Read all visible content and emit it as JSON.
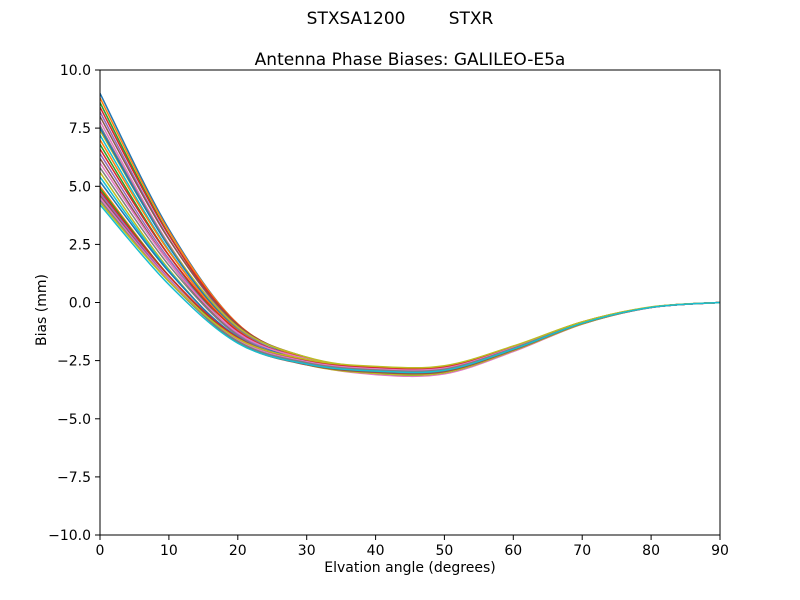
{
  "figure": {
    "suptitle": "STXSA1200        STXR",
    "title": "Antenna Phase Biases: GALILEO-E5a",
    "xlabel": "Elvation angle (degrees)",
    "ylabel": "Bias (mm)"
  },
  "chart_data": {
    "type": "line",
    "suptitle": "STXSA1200        STXR",
    "title": "Antenna Phase Biases: GALILEO-E5a",
    "xlabel": "Elvation angle (degrees)",
    "ylabel": "Bias (mm)",
    "xlim": [
      0,
      90
    ],
    "ylim": [
      -10,
      10
    ],
    "x_ticks": [
      0,
      10,
      20,
      30,
      40,
      50,
      60,
      70,
      80,
      90
    ],
    "x_tick_labels": [
      "0",
      "10",
      "20",
      "30",
      "40",
      "50",
      "60",
      "70",
      "80",
      "90"
    ],
    "y_ticks": [
      10.0,
      7.5,
      5.0,
      2.5,
      0.0,
      -2.5,
      -5.0,
      -7.5,
      -10.0
    ],
    "y_tick_labels": [
      "10.0",
      "7.5",
      "5.0",
      "2.5",
      "0.0",
      "−2.5",
      "−5.0",
      "−7.5",
      "−10.0"
    ],
    "grid": false,
    "legend": "none",
    "palette": [
      "#1f77b4",
      "#ff7f0e",
      "#2ca02c",
      "#d62728",
      "#9467bd",
      "#8c564b",
      "#e377c2",
      "#7f7f7f",
      "#bcbd22",
      "#17becf"
    ],
    "x": [
      0,
      10,
      20,
      30,
      40,
      50,
      60,
      70,
      80,
      90
    ],
    "series": [
      {
        "color_index": 0,
        "values": [
          9.0,
          3.15,
          -0.93,
          -2.46,
          -3.0,
          -2.97,
          -2.04,
          -0.9,
          -0.21,
          0.0
        ]
      },
      {
        "color_index": 1,
        "values": [
          8.8,
          3.07,
          -0.92,
          -2.42,
          -2.95,
          -2.92,
          -2.01,
          -0.89,
          -0.21,
          0.0
        ]
      },
      {
        "color_index": 2,
        "values": [
          8.6,
          2.93,
          -1.04,
          -2.53,
          -3.05,
          -3.02,
          -2.07,
          -0.92,
          -0.21,
          0.0
        ]
      },
      {
        "color_index": 3,
        "values": [
          8.4,
          2.9,
          -0.95,
          -2.39,
          -2.9,
          -2.87,
          -1.97,
          -0.87,
          -0.2,
          0.0
        ]
      },
      {
        "color_index": 4,
        "values": [
          8.2,
          2.75,
          -1.07,
          -2.5,
          -3.0,
          -2.97,
          -2.04,
          -0.9,
          -0.21,
          0.0
        ]
      },
      {
        "color_index": 5,
        "values": [
          8.0,
          2.72,
          -0.98,
          -2.36,
          -2.85,
          -2.82,
          -1.94,
          -0.86,
          -0.2,
          0.0
        ]
      },
      {
        "color_index": 6,
        "values": [
          7.8,
          2.51,
          -1.23,
          -2.62,
          -3.1,
          -3.07,
          -2.11,
          -0.93,
          -0.22,
          0.0
        ]
      },
      {
        "color_index": 7,
        "values": [
          7.6,
          2.47,
          -1.14,
          -2.48,
          -2.95,
          -2.92,
          -2.01,
          -0.89,
          -0.21,
          0.0
        ]
      },
      {
        "color_index": 8,
        "values": [
          7.4,
          2.44,
          -1.05,
          -2.35,
          -2.8,
          -2.77,
          -1.9,
          -0.84,
          -0.2,
          0.0
        ]
      },
      {
        "color_index": 9,
        "values": [
          7.2,
          2.25,
          -1.25,
          -2.55,
          -3.0,
          -2.97,
          -2.04,
          -0.9,
          -0.21,
          0.0
        ]
      },
      {
        "color_index": 0,
        "values": [
          7.5,
          2.4,
          -1.2,
          -2.54,
          -3.0,
          -2.97,
          -2.04,
          -0.9,
          -0.21,
          0.0
        ]
      },
      {
        "color_index": 1,
        "values": [
          7.0,
          2.2,
          -1.21,
          -2.46,
          -2.9,
          -2.87,
          -1.97,
          -0.87,
          -0.2,
          0.0
        ]
      },
      {
        "color_index": 2,
        "values": [
          6.8,
          2.03,
          -1.37,
          -2.62,
          -3.05,
          -3.02,
          -2.07,
          -0.92,
          -0.21,
          0.0
        ]
      },
      {
        "color_index": 3,
        "values": [
          6.6,
          2.02,
          -1.23,
          -2.43,
          -2.85,
          -2.82,
          -1.94,
          -0.86,
          -0.2,
          0.0
        ]
      },
      {
        "color_index": 4,
        "values": [
          6.4,
          1.87,
          -1.36,
          -2.54,
          -2.95,
          -2.92,
          -2.01,
          -0.89,
          -0.21,
          0.0
        ]
      },
      {
        "color_index": 5,
        "values": [
          6.2,
          1.75,
          -1.43,
          -2.6,
          -3.0,
          -2.97,
          -2.04,
          -0.9,
          -0.21,
          0.0
        ]
      },
      {
        "color_index": 6,
        "values": [
          6.0,
          1.74,
          -1.3,
          -2.42,
          -2.8,
          -2.77,
          -1.9,
          -0.84,
          -0.2,
          0.0
        ]
      },
      {
        "color_index": 7,
        "values": [
          5.8,
          1.6,
          -1.42,
          -2.52,
          -2.9,
          -2.87,
          -1.97,
          -0.87,
          -0.2,
          0.0
        ]
      },
      {
        "color_index": 8,
        "values": [
          5.6,
          1.43,
          -1.58,
          -2.68,
          -3.05,
          -3.02,
          -2.07,
          -0.92,
          -0.21,
          0.0
        ]
      },
      {
        "color_index": 9,
        "values": [
          5.4,
          1.37,
          -1.54,
          -2.59,
          -2.95,
          -2.92,
          -2.01,
          -0.89,
          -0.21,
          0.0
        ]
      },
      {
        "color_index": 0,
        "values": [
          5.2,
          1.32,
          -1.49,
          -2.5,
          -2.85,
          -2.82,
          -1.94,
          -0.86,
          -0.2,
          0.0
        ]
      },
      {
        "color_index": 1,
        "values": [
          5.0,
          1.15,
          -1.65,
          -2.66,
          -3.0,
          -2.97,
          -2.04,
          -0.9,
          -0.21,
          0.0
        ]
      },
      {
        "color_index": 2,
        "values": [
          4.9,
          1.15,
          -1.58,
          -2.57,
          -2.9,
          -2.87,
          -1.97,
          -0.87,
          -0.2,
          0.0
        ]
      },
      {
        "color_index": 3,
        "values": [
          4.8,
          1.14,
          -1.52,
          -2.48,
          -2.8,
          -2.77,
          -1.9,
          -0.84,
          -0.2,
          0.0
        ]
      },
      {
        "color_index": 4,
        "values": [
          4.7,
          1.02,
          -1.66,
          -2.63,
          -2.95,
          -2.92,
          -2.01,
          -0.89,
          -0.21,
          0.0
        ]
      },
      {
        "color_index": 5,
        "values": [
          4.6,
          0.95,
          -1.72,
          -2.68,
          -3.0,
          -2.97,
          -2.04,
          -0.9,
          -0.21,
          0.0
        ]
      },
      {
        "color_index": 6,
        "values": [
          4.5,
          0.97,
          -1.61,
          -2.54,
          -2.85,
          -2.82,
          -1.94,
          -0.86,
          -0.2,
          0.0
        ]
      },
      {
        "color_index": 7,
        "values": [
          4.4,
          0.9,
          -1.67,
          -2.59,
          -2.9,
          -2.87,
          -1.97,
          -0.87,
          -0.2,
          0.0
        ]
      },
      {
        "color_index": 8,
        "values": [
          4.3,
          0.91,
          -1.56,
          -2.45,
          -2.75,
          -2.72,
          -1.87,
          -0.83,
          -0.19,
          0.0
        ]
      },
      {
        "color_index": 9,
        "values": [
          4.2,
          0.77,
          -1.75,
          -2.65,
          -2.95,
          -2.92,
          -2.01,
          -0.89,
          -0.21,
          0.0
        ]
      }
    ]
  }
}
